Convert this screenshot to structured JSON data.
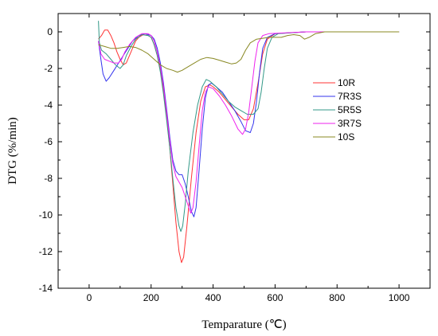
{
  "chart_data": {
    "type": "line",
    "title": "",
    "xlabel": "Temparature (℃)",
    "ylabel": "DTG (%/min)",
    "xlim": [
      -100,
      1100
    ],
    "ylim": [
      -14,
      1
    ],
    "xticks": [
      0,
      200,
      400,
      600,
      800,
      1000
    ],
    "yticks": [
      0,
      -2,
      -4,
      -6,
      -8,
      -10,
      -12,
      -14
    ],
    "grid": false,
    "legend_position": "right",
    "series": [
      {
        "name": "10R",
        "color": "#ff3333",
        "points": [
          [
            30,
            -0.4
          ],
          [
            40,
            -0.2
          ],
          [
            50,
            0.1
          ],
          [
            60,
            0.1
          ],
          [
            70,
            -0.2
          ],
          [
            80,
            -0.6
          ],
          [
            90,
            -1.1
          ],
          [
            100,
            -1.5
          ],
          [
            110,
            -1.8
          ],
          [
            120,
            -1.7
          ],
          [
            130,
            -1.3
          ],
          [
            140,
            -0.9
          ],
          [
            150,
            -0.5
          ],
          [
            160,
            -0.3
          ],
          [
            175,
            -0.15
          ],
          [
            190,
            -0.2
          ],
          [
            200,
            -0.3
          ],
          [
            210,
            -0.7
          ],
          [
            220,
            -1.3
          ],
          [
            230,
            -2.1
          ],
          [
            240,
            -3.2
          ],
          [
            250,
            -4.6
          ],
          [
            260,
            -6.3
          ],
          [
            270,
            -8.3
          ],
          [
            280,
            -10.4
          ],
          [
            290,
            -12.0
          ],
          [
            298,
            -12.6
          ],
          [
            305,
            -12.3
          ],
          [
            315,
            -10.7
          ],
          [
            330,
            -8.0
          ],
          [
            345,
            -5.5
          ],
          [
            360,
            -3.8
          ],
          [
            375,
            -3.0
          ],
          [
            390,
            -2.9
          ],
          [
            400,
            -3.0
          ],
          [
            420,
            -3.3
          ],
          [
            440,
            -3.7
          ],
          [
            460,
            -4.1
          ],
          [
            480,
            -4.5
          ],
          [
            500,
            -4.8
          ],
          [
            515,
            -4.8
          ],
          [
            530,
            -4.2
          ],
          [
            545,
            -2.8
          ],
          [
            560,
            -1.2
          ],
          [
            575,
            -0.4
          ],
          [
            600,
            -0.1
          ],
          [
            700,
            0.0
          ],
          [
            800,
            0.0
          ],
          [
            900,
            0.0
          ],
          [
            1000,
            0.0
          ]
        ]
      },
      {
        "name": "7R3S",
        "color": "#3333ee",
        "points": [
          [
            30,
            -0.5
          ],
          [
            38,
            -1.5
          ],
          [
            45,
            -2.3
          ],
          [
            55,
            -2.7
          ],
          [
            65,
            -2.5
          ],
          [
            80,
            -2.1
          ],
          [
            95,
            -1.7
          ],
          [
            110,
            -1.3
          ],
          [
            125,
            -0.9
          ],
          [
            140,
            -0.5
          ],
          [
            160,
            -0.2
          ],
          [
            180,
            -0.1
          ],
          [
            200,
            -0.2
          ],
          [
            210,
            -0.4
          ],
          [
            220,
            -0.9
          ],
          [
            230,
            -1.7
          ],
          [
            240,
            -2.8
          ],
          [
            250,
            -4.2
          ],
          [
            260,
            -5.7
          ],
          [
            270,
            -7.0
          ],
          [
            280,
            -7.6
          ],
          [
            290,
            -7.8
          ],
          [
            300,
            -7.8
          ],
          [
            310,
            -8.3
          ],
          [
            320,
            -9.0
          ],
          [
            330,
            -9.8
          ],
          [
            338,
            -10.1
          ],
          [
            345,
            -9.6
          ],
          [
            355,
            -7.5
          ],
          [
            365,
            -5.3
          ],
          [
            375,
            -3.6
          ],
          [
            385,
            -2.9
          ],
          [
            395,
            -2.8
          ],
          [
            410,
            -3.0
          ],
          [
            430,
            -3.3
          ],
          [
            450,
            -3.8
          ],
          [
            470,
            -4.3
          ],
          [
            490,
            -4.9
          ],
          [
            505,
            -5.4
          ],
          [
            520,
            -5.5
          ],
          [
            530,
            -5.0
          ],
          [
            540,
            -3.8
          ],
          [
            550,
            -2.2
          ],
          [
            560,
            -0.9
          ],
          [
            575,
            -0.3
          ],
          [
            600,
            -0.1
          ],
          [
            700,
            0.0
          ],
          [
            800,
            0.0
          ],
          [
            900,
            0.0
          ],
          [
            1000,
            0.0
          ]
        ]
      },
      {
        "name": "5R5S",
        "color": "#339988",
        "points": [
          [
            30,
            0.6
          ],
          [
            33,
            -0.6
          ],
          [
            40,
            -1.0
          ],
          [
            55,
            -1.2
          ],
          [
            70,
            -1.5
          ],
          [
            85,
            -1.8
          ],
          [
            100,
            -2.0
          ],
          [
            110,
            -1.8
          ],
          [
            120,
            -1.3
          ],
          [
            135,
            -0.8
          ],
          [
            150,
            -0.4
          ],
          [
            170,
            -0.15
          ],
          [
            190,
            -0.2
          ],
          [
            200,
            -0.3
          ],
          [
            210,
            -0.7
          ],
          [
            220,
            -1.3
          ],
          [
            230,
            -2.2
          ],
          [
            240,
            -3.4
          ],
          [
            250,
            -4.8
          ],
          [
            260,
            -6.3
          ],
          [
            270,
            -8.0
          ],
          [
            280,
            -9.6
          ],
          [
            290,
            -10.6
          ],
          [
            296,
            -10.9
          ],
          [
            302,
            -10.6
          ],
          [
            310,
            -9.4
          ],
          [
            320,
            -7.6
          ],
          [
            335,
            -5.5
          ],
          [
            350,
            -4.0
          ],
          [
            365,
            -3.0
          ],
          [
            378,
            -2.6
          ],
          [
            390,
            -2.7
          ],
          [
            410,
            -3.0
          ],
          [
            430,
            -3.4
          ],
          [
            450,
            -3.8
          ],
          [
            470,
            -4.1
          ],
          [
            490,
            -4.3
          ],
          [
            510,
            -4.5
          ],
          [
            530,
            -4.5
          ],
          [
            545,
            -4.2
          ],
          [
            555,
            -3.3
          ],
          [
            565,
            -2.0
          ],
          [
            575,
            -0.9
          ],
          [
            590,
            -0.3
          ],
          [
            610,
            -0.1
          ],
          [
            700,
            0.0
          ],
          [
            800,
            0.0
          ],
          [
            900,
            0.0
          ],
          [
            1000,
            0.0
          ]
        ]
      },
      {
        "name": "3R7S",
        "color": "#ee22ee",
        "points": [
          [
            30,
            -0.5
          ],
          [
            38,
            -1.2
          ],
          [
            50,
            -1.5
          ],
          [
            65,
            -1.6
          ],
          [
            80,
            -1.7
          ],
          [
            95,
            -1.7
          ],
          [
            105,
            -1.5
          ],
          [
            115,
            -1.1
          ],
          [
            130,
            -0.7
          ],
          [
            150,
            -0.3
          ],
          [
            170,
            -0.1
          ],
          [
            190,
            -0.1
          ],
          [
            200,
            -0.2
          ],
          [
            210,
            -0.5
          ],
          [
            220,
            -1.1
          ],
          [
            230,
            -1.9
          ],
          [
            240,
            -3.0
          ],
          [
            250,
            -4.4
          ],
          [
            260,
            -5.9
          ],
          [
            270,
            -7.2
          ],
          [
            280,
            -7.9
          ],
          [
            290,
            -8.2
          ],
          [
            300,
            -8.5
          ],
          [
            310,
            -9.0
          ],
          [
            320,
            -9.5
          ],
          [
            328,
            -9.9
          ],
          [
            335,
            -9.6
          ],
          [
            345,
            -8.2
          ],
          [
            355,
            -6.2
          ],
          [
            365,
            -4.3
          ],
          [
            375,
            -3.3
          ],
          [
            385,
            -3.0
          ],
          [
            400,
            -3.1
          ],
          [
            420,
            -3.5
          ],
          [
            440,
            -4.0
          ],
          [
            460,
            -4.6
          ],
          [
            480,
            -5.3
          ],
          [
            495,
            -5.6
          ],
          [
            505,
            -5.3
          ],
          [
            515,
            -4.4
          ],
          [
            525,
            -3.0
          ],
          [
            535,
            -1.6
          ],
          [
            545,
            -0.6
          ],
          [
            560,
            -0.2
          ],
          [
            580,
            -0.1
          ],
          [
            700,
            0.0
          ],
          [
            800,
            0.0
          ],
          [
            900,
            0.0
          ],
          [
            1000,
            0.0
          ]
        ]
      },
      {
        "name": "10S",
        "color": "#888822",
        "points": [
          [
            30,
            -0.7
          ],
          [
            50,
            -0.8
          ],
          [
            70,
            -0.9
          ],
          [
            90,
            -0.9
          ],
          [
            110,
            -0.85
          ],
          [
            130,
            -0.8
          ],
          [
            150,
            -0.85
          ],
          [
            170,
            -1.0
          ],
          [
            190,
            -1.2
          ],
          [
            210,
            -1.5
          ],
          [
            230,
            -1.8
          ],
          [
            250,
            -2.0
          ],
          [
            270,
            -2.1
          ],
          [
            285,
            -2.2
          ],
          [
            300,
            -2.1
          ],
          [
            320,
            -1.9
          ],
          [
            340,
            -1.7
          ],
          [
            360,
            -1.5
          ],
          [
            380,
            -1.4
          ],
          [
            400,
            -1.45
          ],
          [
            420,
            -1.55
          ],
          [
            440,
            -1.65
          ],
          [
            460,
            -1.75
          ],
          [
            475,
            -1.7
          ],
          [
            490,
            -1.5
          ],
          [
            505,
            -1.0
          ],
          [
            520,
            -0.6
          ],
          [
            540,
            -0.4
          ],
          [
            560,
            -0.35
          ],
          [
            580,
            -0.3
          ],
          [
            600,
            -0.3
          ],
          [
            620,
            -0.3
          ],
          [
            640,
            -0.2
          ],
          [
            660,
            -0.15
          ],
          [
            680,
            -0.2
          ],
          [
            695,
            -0.4
          ],
          [
            710,
            -0.3
          ],
          [
            730,
            -0.1
          ],
          [
            760,
            0.0
          ],
          [
            800,
            0.0
          ],
          [
            900,
            0.0
          ],
          [
            1000,
            0.0
          ]
        ]
      }
    ]
  }
}
